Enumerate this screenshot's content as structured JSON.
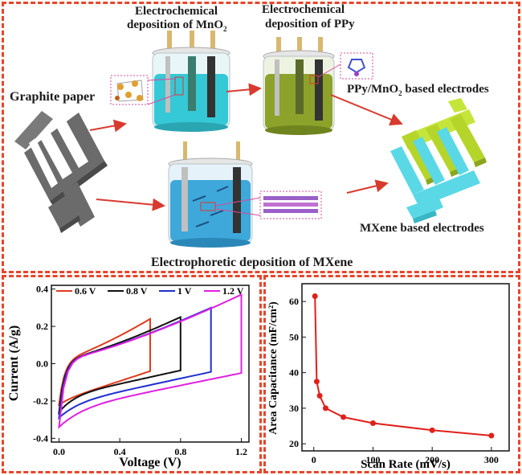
{
  "top": {
    "labels": {
      "graphite": "Graphite paper",
      "mno2_line1": "Electrochemical",
      "mno2_line2": "deposition of MnO",
      "mno2_sub": "2",
      "ppy_line1": "Electrochemical",
      "ppy_line2": "deposition of PPy",
      "ppy_mno2_a": "PPy/MnO",
      "ppy_mno2_sub": "2",
      "ppy_mno2_b": " based electrodes",
      "mxene_electrodes": "MXene based electrodes",
      "epd": "Electrophoretic deposition of MXene"
    },
    "colors": {
      "border": "#e8452a",
      "graphite": "#6b6b6b",
      "mno2_solution": "#35c8d6",
      "ppy_solution": "#8da22a",
      "mxene_solution": "#3ea8da",
      "ppy_electrode": "#c6e53a",
      "mxene_electrode": "#5ad8e6",
      "arrow": "#d93a2e"
    },
    "icons": [
      "graphite-paper-icon",
      "mno2-cell-icon",
      "ppy-cell-icon",
      "mxene-cell-icon",
      "crystal-structure-icon",
      "ppy-molecule-icon",
      "mxene-layers-icon",
      "ppy-electrode-icon",
      "mxene-electrode-icon"
    ]
  },
  "chart_data": [
    {
      "type": "line",
      "xlabel": "Voltage (V)",
      "ylabel": "Current (A/g)",
      "xlim": [
        -0.05,
        1.25
      ],
      "ylim": [
        -0.42,
        0.42
      ],
      "xticks": [
        "0.0",
        "0.4",
        "0.8",
        "1.2"
      ],
      "yticks": [
        "0.4",
        "0.2",
        "0.0",
        "-0.2",
        "-0.4"
      ],
      "legend_position": "top",
      "series": [
        {
          "name": "0.6 V",
          "color": "#e03a1e",
          "vmax": 0.6,
          "top_end": 0.24,
          "bottom_start": -0.22,
          "bottom_mid": -0.2
        },
        {
          "name": "0.8 V",
          "color": "#111111",
          "vmax": 0.8,
          "top_end": 0.25,
          "bottom_start": -0.26,
          "bottom_mid": -0.18
        },
        {
          "name": "1 V",
          "color": "#1f2fd0",
          "vmax": 1.0,
          "top_end": 0.3,
          "bottom_start": -0.29,
          "bottom_mid": -0.22
        },
        {
          "name": "1.2 V",
          "color": "#e020e0",
          "vmax": 1.2,
          "top_end": 0.37,
          "bottom_start": -0.34,
          "bottom_mid": -0.25
        }
      ]
    },
    {
      "type": "line",
      "xlabel": "Scan Rate (mV/s)",
      "ylabel": "Area Capacitance (mF/cm²)",
      "xlim": [
        -20,
        330
      ],
      "ylim": [
        18,
        65
      ],
      "xticks": [
        "0",
        "100",
        "200",
        "300"
      ],
      "yticks": [
        "60",
        "50",
        "40",
        "30",
        "20"
      ],
      "series": [
        {
          "name": "",
          "color": "#e0201a",
          "x": [
            2,
            5,
            10,
            20,
            50,
            100,
            200,
            300
          ],
          "y": [
            61.5,
            37.5,
            33.5,
            30,
            27.5,
            25.8,
            23.8,
            22.3
          ]
        }
      ]
    }
  ]
}
